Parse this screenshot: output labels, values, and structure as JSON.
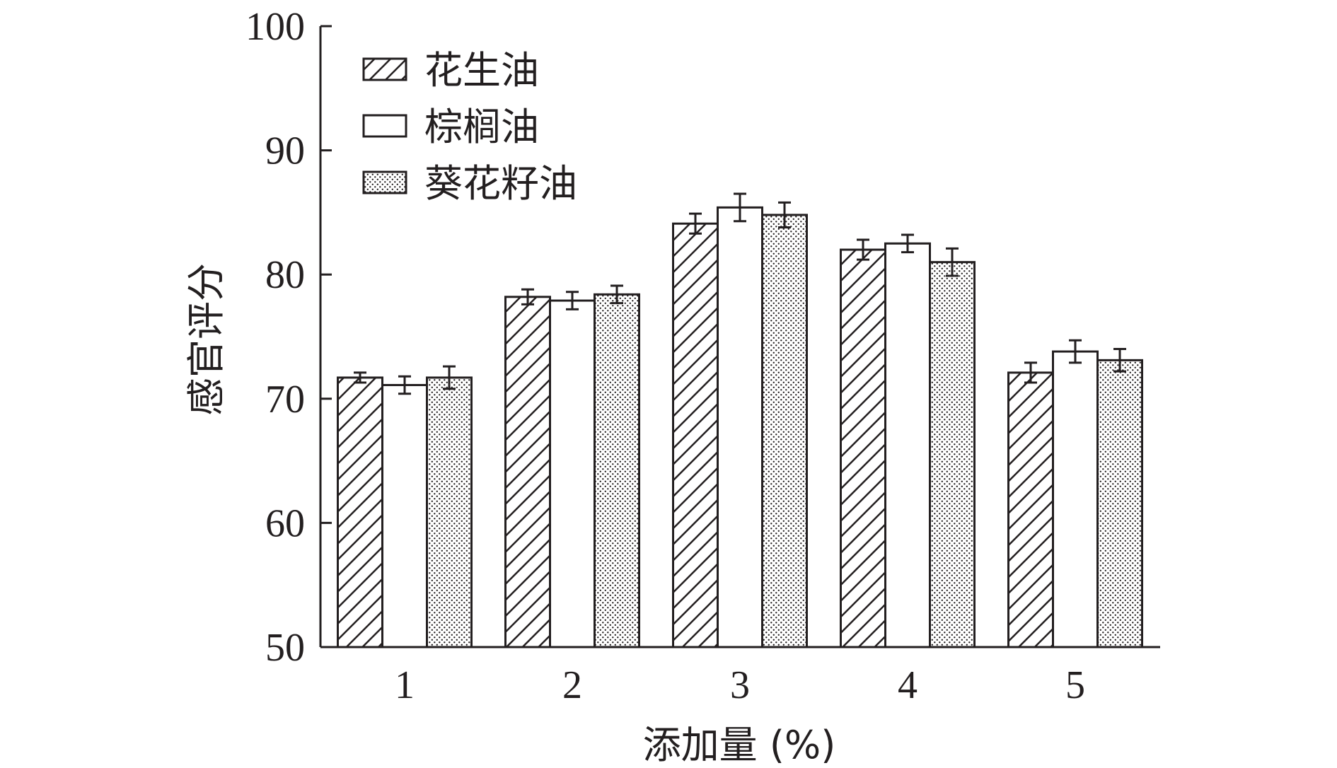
{
  "chart_data": {
    "type": "bar",
    "title": "",
    "xlabel": "添加量 (%)",
    "ylabel": "感官评分",
    "categories": [
      "1",
      "2",
      "3",
      "4",
      "5"
    ],
    "yticks": [
      "50",
      "60",
      "70",
      "80",
      "90",
      "100"
    ],
    "ylim": [
      50,
      100
    ],
    "legend_position": "top-left",
    "series": [
      {
        "name": "花生油",
        "pattern": "hatch",
        "values": [
          71.7,
          78.2,
          84.1,
          82.0,
          72.1
        ],
        "errors": [
          0.4,
          0.6,
          0.8,
          0.8,
          0.8
        ]
      },
      {
        "name": "棕榈油",
        "pattern": "white",
        "values": [
          71.1,
          77.9,
          85.4,
          82.5,
          73.8
        ],
        "errors": [
          0.7,
          0.7,
          1.1,
          0.7,
          0.9
        ]
      },
      {
        "name": "葵花籽油",
        "pattern": "dots",
        "values": [
          71.7,
          78.4,
          84.8,
          81.0,
          73.1
        ],
        "errors": [
          0.9,
          0.7,
          1.0,
          1.1,
          0.9
        ]
      }
    ]
  },
  "colors": {
    "ink": "#231f20",
    "background": "#ffffff"
  }
}
